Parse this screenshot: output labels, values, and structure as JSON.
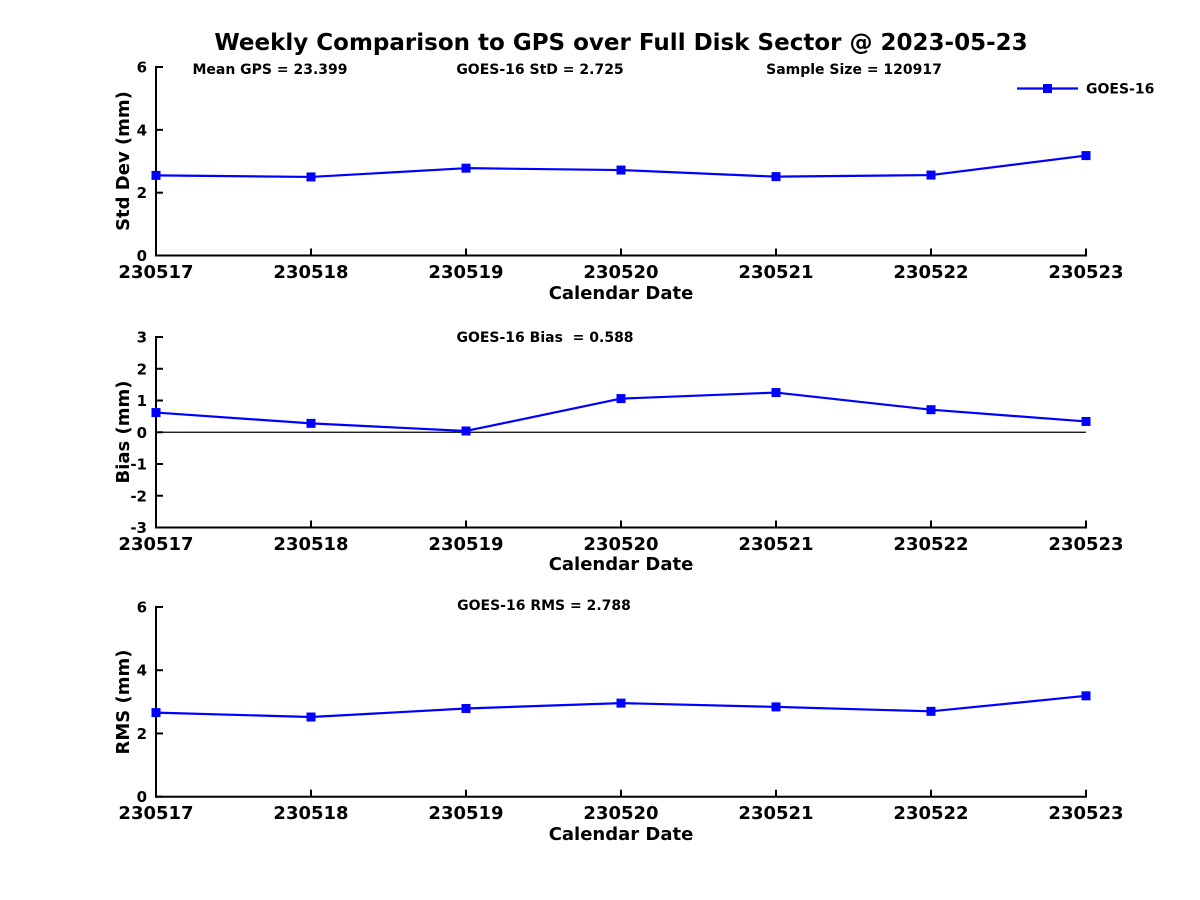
{
  "colors": {
    "series_blue": "#0000ff",
    "axis": "#000000",
    "text": "#000000",
    "background": "#ffffff"
  },
  "legend": {
    "label": "GOES-16",
    "color": "#0000ff",
    "marker": "square",
    "position": "upper-right",
    "frame": false
  },
  "chart_data": [
    {
      "type": "line",
      "title": "Weekly Comparison to GPS over Full Disk Sector @ 2023-05-23",
      "annotations": [
        "Mean GPS = 23.399",
        "GOES-16 StD = 2.725",
        "Sample Size = 120917"
      ],
      "categories": [
        "230517",
        "230518",
        "230519",
        "230520",
        "230521",
        "230522",
        "230523"
      ],
      "series": [
        {
          "name": "GOES-16",
          "color": "#0000ff",
          "marker": "square",
          "values": [
            2.55,
            2.5,
            2.78,
            2.72,
            2.51,
            2.56,
            3.18
          ]
        }
      ],
      "xlabel": "Calendar Date",
      "ylabel": "Std Dev (mm)",
      "ylim": [
        0,
        6
      ],
      "yticks": [
        0,
        2,
        4,
        6
      ],
      "grid": false,
      "legend_entries": [
        "GOES-16"
      ]
    },
    {
      "type": "line",
      "annotations": [
        "GOES-16 Bias  = 0.588"
      ],
      "categories": [
        "230517",
        "230518",
        "230519",
        "230520",
        "230521",
        "230522",
        "230523"
      ],
      "series": [
        {
          "name": "GOES-16",
          "color": "#0000ff",
          "marker": "square",
          "values": [
            0.62,
            0.28,
            0.04,
            1.06,
            1.25,
            0.71,
            0.34
          ]
        }
      ],
      "xlabel": "Calendar Date",
      "ylabel": "Bias (mm)",
      "ylim": [
        -3,
        3
      ],
      "yticks": [
        -3,
        -2,
        -1,
        0,
        1,
        2,
        3
      ],
      "zero_line": true,
      "grid": false
    },
    {
      "type": "line",
      "annotations": [
        "GOES-16 RMS = 2.788"
      ],
      "categories": [
        "230517",
        "230518",
        "230519",
        "230520",
        "230521",
        "230522",
        "230523"
      ],
      "series": [
        {
          "name": "GOES-16",
          "color": "#0000ff",
          "marker": "square",
          "values": [
            2.66,
            2.52,
            2.79,
            2.96,
            2.84,
            2.7,
            3.19
          ]
        }
      ],
      "xlabel": "Calendar Date",
      "ylabel": "RMS (mm)",
      "ylim": [
        0,
        6
      ],
      "yticks": [
        0,
        2,
        4,
        6
      ],
      "grid": false
    }
  ]
}
